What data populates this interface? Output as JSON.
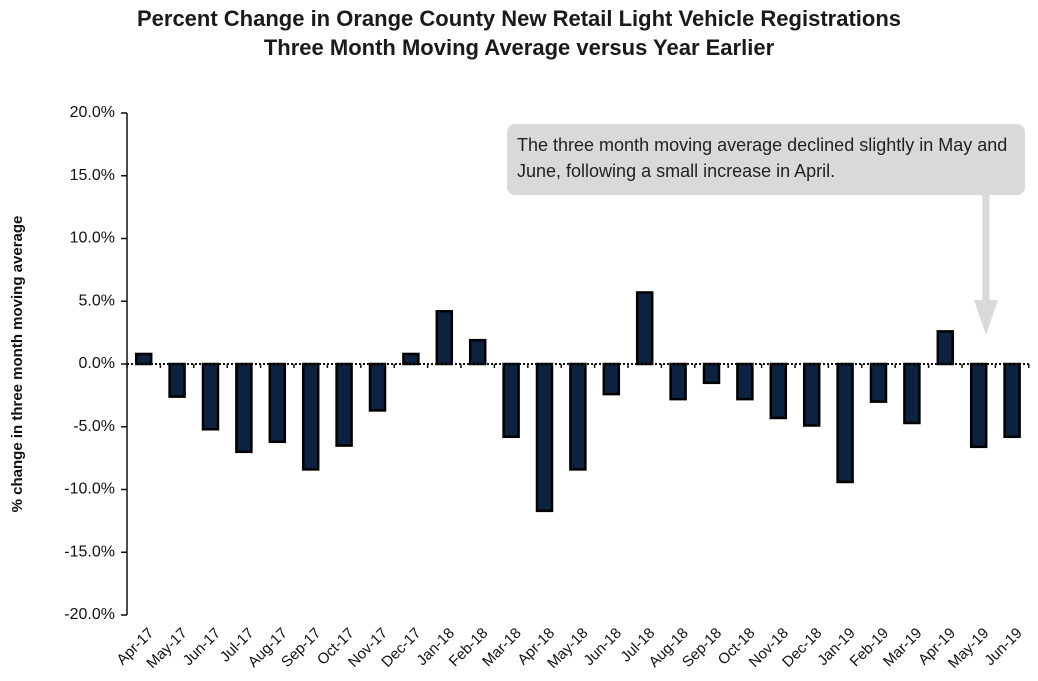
{
  "chart_data": {
    "type": "bar",
    "title": "Percent Change in Orange County New Retail Light Vehicle Registrations",
    "subtitle": "Three Month Moving Average versus Year Earlier",
    "y_label": "% change in three month moving average",
    "annotation": "The three month moving average declined slightly in May and June, following a small increase in April.",
    "categories": [
      "Apr-17",
      "May-17",
      "Jun-17",
      "Jul-17",
      "Aug-17",
      "Sep-17",
      "Oct-17",
      "Nov-17",
      "Dec-17",
      "Jan-18",
      "Feb-18",
      "Mar-18",
      "Apr-18",
      "May-18",
      "Jun-18",
      "Jul-18",
      "Aug-18",
      "Sep-18",
      "Oct-18",
      "Nov-18",
      "Dec-18",
      "Jan-19",
      "Feb-19",
      "Mar-19",
      "Apr-19",
      "May-19",
      "Jun-19"
    ],
    "values": [
      0.8,
      -2.6,
      -5.2,
      -7.0,
      -6.2,
      -8.4,
      -6.5,
      -3.7,
      0.8,
      4.2,
      1.9,
      -5.8,
      -11.7,
      -8.4,
      -2.4,
      5.7,
      -2.8,
      -1.5,
      -2.8,
      -4.3,
      -4.9,
      -9.4,
      -3.0,
      -4.7,
      2.6,
      -6.6,
      -5.8
    ],
    "color": "#0d2240",
    "ylim": [
      -20,
      20
    ],
    "yticks": [
      {
        "value": -20,
        "label": "-20.0%"
      },
      {
        "value": -15,
        "label": "-15.0%"
      },
      {
        "value": -10,
        "label": "-10.0%"
      },
      {
        "value": -5,
        "label": "-5.0%"
      },
      {
        "value": 0,
        "label": "0.0%"
      },
      {
        "value": 5,
        "label": "5.0%"
      },
      {
        "value": 10,
        "label": "10.0%"
      },
      {
        "value": 15,
        "label": "15.0%"
      },
      {
        "value": 20,
        "label": "20.0%"
      }
    ],
    "grid": false
  }
}
